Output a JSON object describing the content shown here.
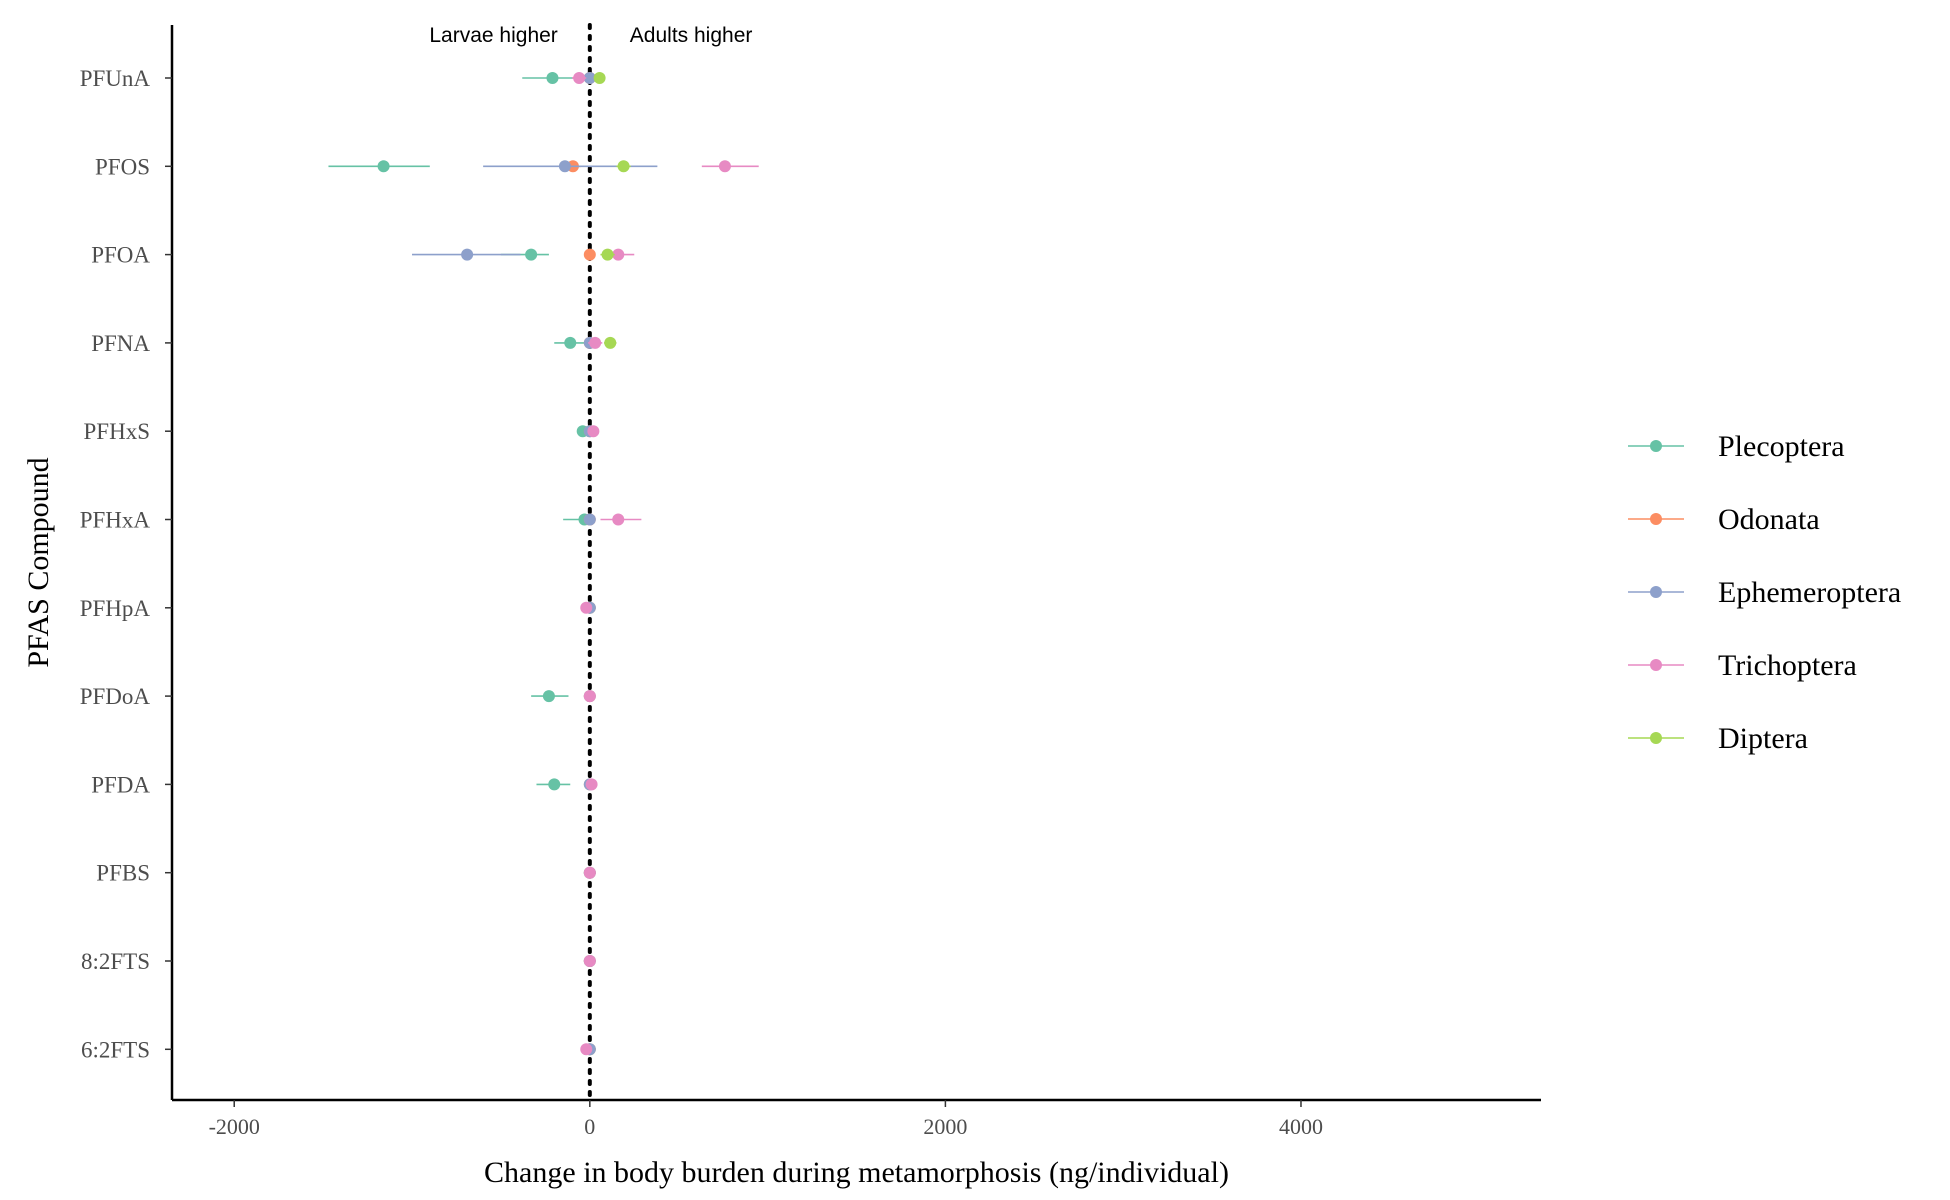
{
  "chart_data": {
    "type": "dot-whisker",
    "ylabel": "PFAS Compound",
    "xlabel": "Change in body burden during metamorphosis (ng/individual)",
    "xlim": [
      -2350,
      5350
    ],
    "xticks": [
      -2000,
      0,
      2000,
      4000
    ],
    "xtick_labels": [
      "-2000",
      "0",
      "2000",
      "4000"
    ],
    "reference_line": {
      "x": 0,
      "style": "dotted"
    },
    "annotations": [
      {
        "text": "Larvae higher",
        "side": "left"
      },
      {
        "text": "Adults higher",
        "side": "right"
      }
    ],
    "categories": [
      "PFUnA",
      "PFOS",
      "PFOA",
      "PFNA",
      "PFHxS",
      "PFHxA",
      "PFHpA",
      "PFDoA",
      "PFDA",
      "PFBS",
      "8:2FTS",
      "6:2FTS"
    ],
    "legend": {
      "position": "right"
    },
    "series": [
      {
        "name": "Plecoptera",
        "color": "#66c2a5",
        "points": [
          {
            "category": "PFUnA",
            "x": -210,
            "low": -380,
            "high": -40
          },
          {
            "category": "PFOS",
            "x": -1160,
            "low": -1470,
            "high": -900
          },
          {
            "category": "PFOA",
            "x": -330,
            "low": -500,
            "high": -230
          },
          {
            "category": "PFNA",
            "x": -110,
            "low": -200,
            "high": -20
          },
          {
            "category": "PFHxS",
            "x": -40,
            "low": -70,
            "high": -10
          },
          {
            "category": "PFHxA",
            "x": -30,
            "low": -150,
            "high": 20
          },
          {
            "category": "PFHpA",
            "x": 0,
            "low": -20,
            "high": 20
          },
          {
            "category": "PFDoA",
            "x": -230,
            "low": -330,
            "high": -120
          },
          {
            "category": "PFDA",
            "x": -200,
            "low": -300,
            "high": -110
          },
          {
            "category": "PFBS",
            "x": 0,
            "low": -10,
            "high": 10
          },
          {
            "category": "8:2FTS",
            "x": 0,
            "low": -10,
            "high": 10
          },
          {
            "category": "6:2FTS",
            "x": 0,
            "low": -10,
            "high": 10
          }
        ]
      },
      {
        "name": "Odonata",
        "color": "#fc8d62",
        "points": [
          {
            "category": "PFUnA",
            "x": 0,
            "low": -30,
            "high": 30
          },
          {
            "category": "PFOS",
            "x": -95,
            "low": -140,
            "high": -50
          },
          {
            "category": "PFOA",
            "x": 0,
            "low": -20,
            "high": 20
          },
          {
            "category": "PFNA",
            "x": 0,
            "low": -20,
            "high": 20
          },
          {
            "category": "PFHxS",
            "x": 0,
            "low": -10,
            "high": 10
          },
          {
            "category": "PFHxA",
            "x": 0,
            "low": -20,
            "high": 20
          },
          {
            "category": "PFHpA",
            "x": 0,
            "low": -10,
            "high": 10
          },
          {
            "category": "PFDoA",
            "x": 0,
            "low": -10,
            "high": 10
          },
          {
            "category": "PFDA",
            "x": 0,
            "low": -10,
            "high": 10
          },
          {
            "category": "PFBS",
            "x": 0,
            "low": -10,
            "high": 10
          },
          {
            "category": "8:2FTS",
            "x": 0,
            "low": -10,
            "high": 10
          },
          {
            "category": "6:2FTS",
            "x": 0,
            "low": -10,
            "high": 10
          }
        ]
      },
      {
        "name": "Ephemeroptera",
        "color": "#8da0cb",
        "points": [
          {
            "category": "PFUnA",
            "x": 0,
            "low": -20,
            "high": 20
          },
          {
            "category": "PFOS",
            "x": -140,
            "low": -600,
            "high": 380
          },
          {
            "category": "PFOA",
            "x": -690,
            "low": -1000,
            "high": -390
          },
          {
            "category": "PFNA",
            "x": 0,
            "low": -20,
            "high": 20
          },
          {
            "category": "PFHxS",
            "x": 0,
            "low": -10,
            "high": 10
          },
          {
            "category": "PFHxA",
            "x": 0,
            "low": -20,
            "high": 20
          },
          {
            "category": "PFHpA",
            "x": 0,
            "low": -10,
            "high": 10
          },
          {
            "category": "PFDoA",
            "x": 0,
            "low": -10,
            "high": 10
          },
          {
            "category": "PFDA",
            "x": 0,
            "low": -10,
            "high": 10
          },
          {
            "category": "PFBS",
            "x": 0,
            "low": -10,
            "high": 10
          },
          {
            "category": "8:2FTS",
            "x": 0,
            "low": -10,
            "high": 10
          },
          {
            "category": "6:2FTS",
            "x": 0,
            "low": -10,
            "high": 10
          }
        ]
      },
      {
        "name": "Trichoptera",
        "color": "#e78ac3",
        "points": [
          {
            "category": "PFUnA",
            "x": -60,
            "low": -100,
            "high": -20
          },
          {
            "category": "PFOS",
            "x": 760,
            "low": 630,
            "high": 950
          },
          {
            "category": "PFOA",
            "x": 160,
            "low": 80,
            "high": 250
          },
          {
            "category": "PFNA",
            "x": 30,
            "low": -10,
            "high": 70
          },
          {
            "category": "PFHxS",
            "x": 20,
            "low": -10,
            "high": 50
          },
          {
            "category": "PFHxA",
            "x": 160,
            "low": 60,
            "high": 290
          },
          {
            "category": "PFHpA",
            "x": -20,
            "low": -50,
            "high": 10
          },
          {
            "category": "PFDoA",
            "x": 0,
            "low": -20,
            "high": 20
          },
          {
            "category": "PFDA",
            "x": 10,
            "low": -10,
            "high": 30
          },
          {
            "category": "PFBS",
            "x": 0,
            "low": -10,
            "high": 10
          },
          {
            "category": "8:2FTS",
            "x": 0,
            "low": -10,
            "high": 10
          },
          {
            "category": "6:2FTS",
            "x": -20,
            "low": -40,
            "high": 0
          }
        ]
      },
      {
        "name": "Diptera",
        "color": "#a6d854",
        "points": [
          {
            "category": "PFUnA",
            "x": 55,
            "low": 30,
            "high": 80
          },
          {
            "category": "PFOS",
            "x": 190,
            "low": 150,
            "high": 230
          },
          {
            "category": "PFOA",
            "x": 100,
            "low": 60,
            "high": 140
          },
          {
            "category": "PFNA",
            "x": 115,
            "low": 80,
            "high": 150
          }
        ]
      }
    ]
  }
}
